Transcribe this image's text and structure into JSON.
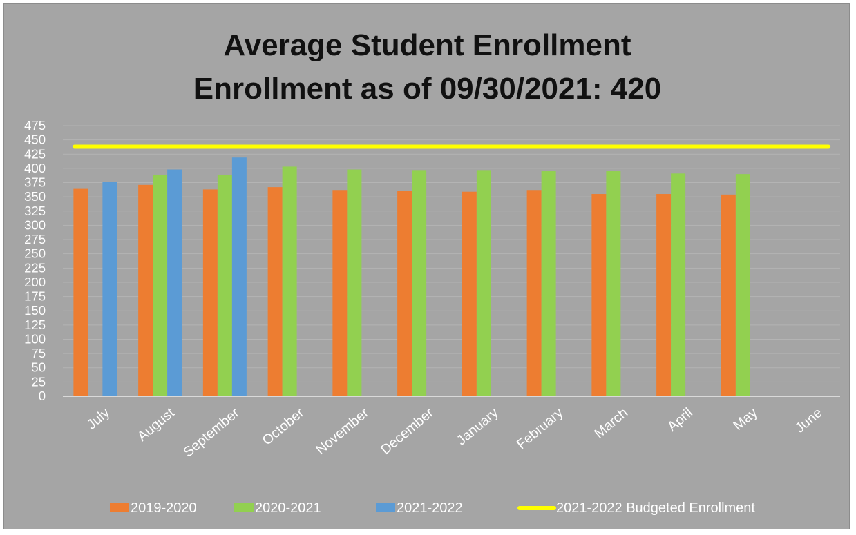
{
  "chart_data": {
    "type": "bar",
    "title": "Average Student Enrollment",
    "subtitle": "Enrollment as of 09/30/2021: 420",
    "categories": [
      "July",
      "August",
      "September",
      "October",
      "November",
      "December",
      "January",
      "February",
      "March",
      "April",
      "May",
      "June"
    ],
    "series": [
      {
        "name": "2019-2020",
        "color": "#ed7d31",
        "values": [
          364,
          371,
          363,
          367,
          362,
          360,
          359,
          362,
          355,
          355,
          354,
          null
        ]
      },
      {
        "name": "2020-2021",
        "color": "#92d050",
        "values": [
          null,
          389,
          389,
          403,
          398,
          397,
          397,
          395,
          395,
          391,
          390,
          null
        ]
      },
      {
        "name": "2021-2022",
        "color": "#5b9bd5",
        "values": [
          376,
          398,
          419,
          null,
          null,
          null,
          null,
          null,
          null,
          null,
          null,
          null
        ]
      }
    ],
    "lines": [
      {
        "name": "2021-2022 Budgeted Enrollment",
        "color": "#ffff00",
        "value": 438,
        "from": "July",
        "to": "June"
      }
    ],
    "ylim": [
      0,
      475
    ],
    "yticks": [
      0,
      25,
      50,
      75,
      100,
      125,
      150,
      175,
      200,
      225,
      250,
      275,
      300,
      325,
      350,
      375,
      400,
      425,
      450,
      475
    ],
    "grid": true,
    "legend_position": "bottom",
    "xlabel": "",
    "ylabel": ""
  }
}
